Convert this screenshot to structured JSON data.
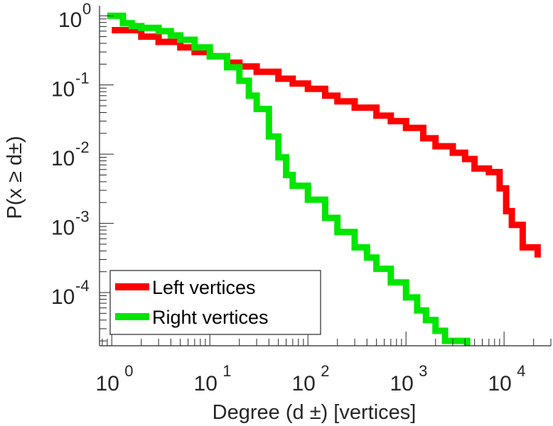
{
  "chart_data": {
    "type": "line",
    "title": "",
    "xlabel": "Degree (d ±) [vertices]",
    "ylabel": "P(x ≥ d±)",
    "x_scale": "log",
    "y_scale": "log",
    "xlim": [
      0.75,
      30000
    ],
    "ylim": [
      1.7e-05,
      1.4
    ],
    "grid": false,
    "legend_position": "bottom-left",
    "x_ticks": [
      {
        "value": 1,
        "base": "10",
        "exp": "0"
      },
      {
        "value": 10,
        "base": "10",
        "exp": "1"
      },
      {
        "value": 100,
        "base": "10",
        "exp": "2"
      },
      {
        "value": 1000,
        "base": "10",
        "exp": "3"
      },
      {
        "value": 10000,
        "base": "10",
        "exp": "4"
      }
    ],
    "y_ticks": [
      {
        "value": 1,
        "base": "10",
        "exp": "0"
      },
      {
        "value": 0.1,
        "base": "10",
        "exp": "-1"
      },
      {
        "value": 0.01,
        "base": "10",
        "exp": "-2"
      },
      {
        "value": 0.001,
        "base": "10",
        "exp": "-3"
      },
      {
        "value": 0.0001,
        "base": "10",
        "exp": "-4"
      }
    ],
    "series": [
      {
        "name": "Left vertices",
        "color": "#ff0000",
        "points": [
          [
            1,
            0.62
          ],
          [
            2,
            0.5
          ],
          [
            3,
            0.42
          ],
          [
            5,
            0.35
          ],
          [
            7,
            0.3
          ],
          [
            10,
            0.26
          ],
          [
            15,
            0.21
          ],
          [
            20,
            0.185
          ],
          [
            30,
            0.155
          ],
          [
            50,
            0.123
          ],
          [
            70,
            0.105
          ],
          [
            100,
            0.088
          ],
          [
            150,
            0.07
          ],
          [
            200,
            0.058
          ],
          [
            300,
            0.047
          ],
          [
            500,
            0.036
          ],
          [
            700,
            0.03
          ],
          [
            1000,
            0.024
          ],
          [
            1500,
            0.017
          ],
          [
            2000,
            0.013
          ],
          [
            3000,
            0.0105
          ],
          [
            4000,
            0.0085
          ],
          [
            5000,
            0.0062
          ],
          [
            7000,
            0.0055
          ],
          [
            9000,
            0.0032
          ],
          [
            10500,
            0.0015
          ],
          [
            12000,
            0.00095
          ],
          [
            15000,
            0.00095
          ],
          [
            15500,
            0.00045
          ],
          [
            19000,
            0.00045
          ],
          [
            22000,
            0.00032
          ]
        ]
      },
      {
        "name": "Right vertices",
        "color": "#00e600",
        "points": [
          [
            0.9,
            1
          ],
          [
            1.2,
            1
          ],
          [
            1.3,
            0.78
          ],
          [
            1.6,
            0.71
          ],
          [
            2,
            0.67
          ],
          [
            3,
            0.6
          ],
          [
            4,
            0.52
          ],
          [
            5,
            0.45
          ],
          [
            7,
            0.35
          ],
          [
            10,
            0.26
          ],
          [
            15,
            0.18
          ],
          [
            20,
            0.115
          ],
          [
            25,
            0.07
          ],
          [
            30,
            0.045
          ],
          [
            40,
            0.018
          ],
          [
            50,
            0.009
          ],
          [
            60,
            0.005
          ],
          [
            70,
            0.0035
          ],
          [
            100,
            0.0022
          ],
          [
            150,
            0.0012
          ],
          [
            200,
            0.00075
          ],
          [
            300,
            0.00045
          ],
          [
            400,
            0.00032
          ],
          [
            500,
            0.00022
          ],
          [
            700,
            0.00014
          ],
          [
            1000,
            8.5e-05
          ],
          [
            1300,
            5.5e-05
          ],
          [
            1600,
            4e-05
          ],
          [
            2000,
            2.8e-05
          ],
          [
            2500,
            2e-05
          ],
          [
            4200,
            2e-05
          ],
          [
            4200,
            1.7e-05
          ]
        ]
      }
    ]
  }
}
